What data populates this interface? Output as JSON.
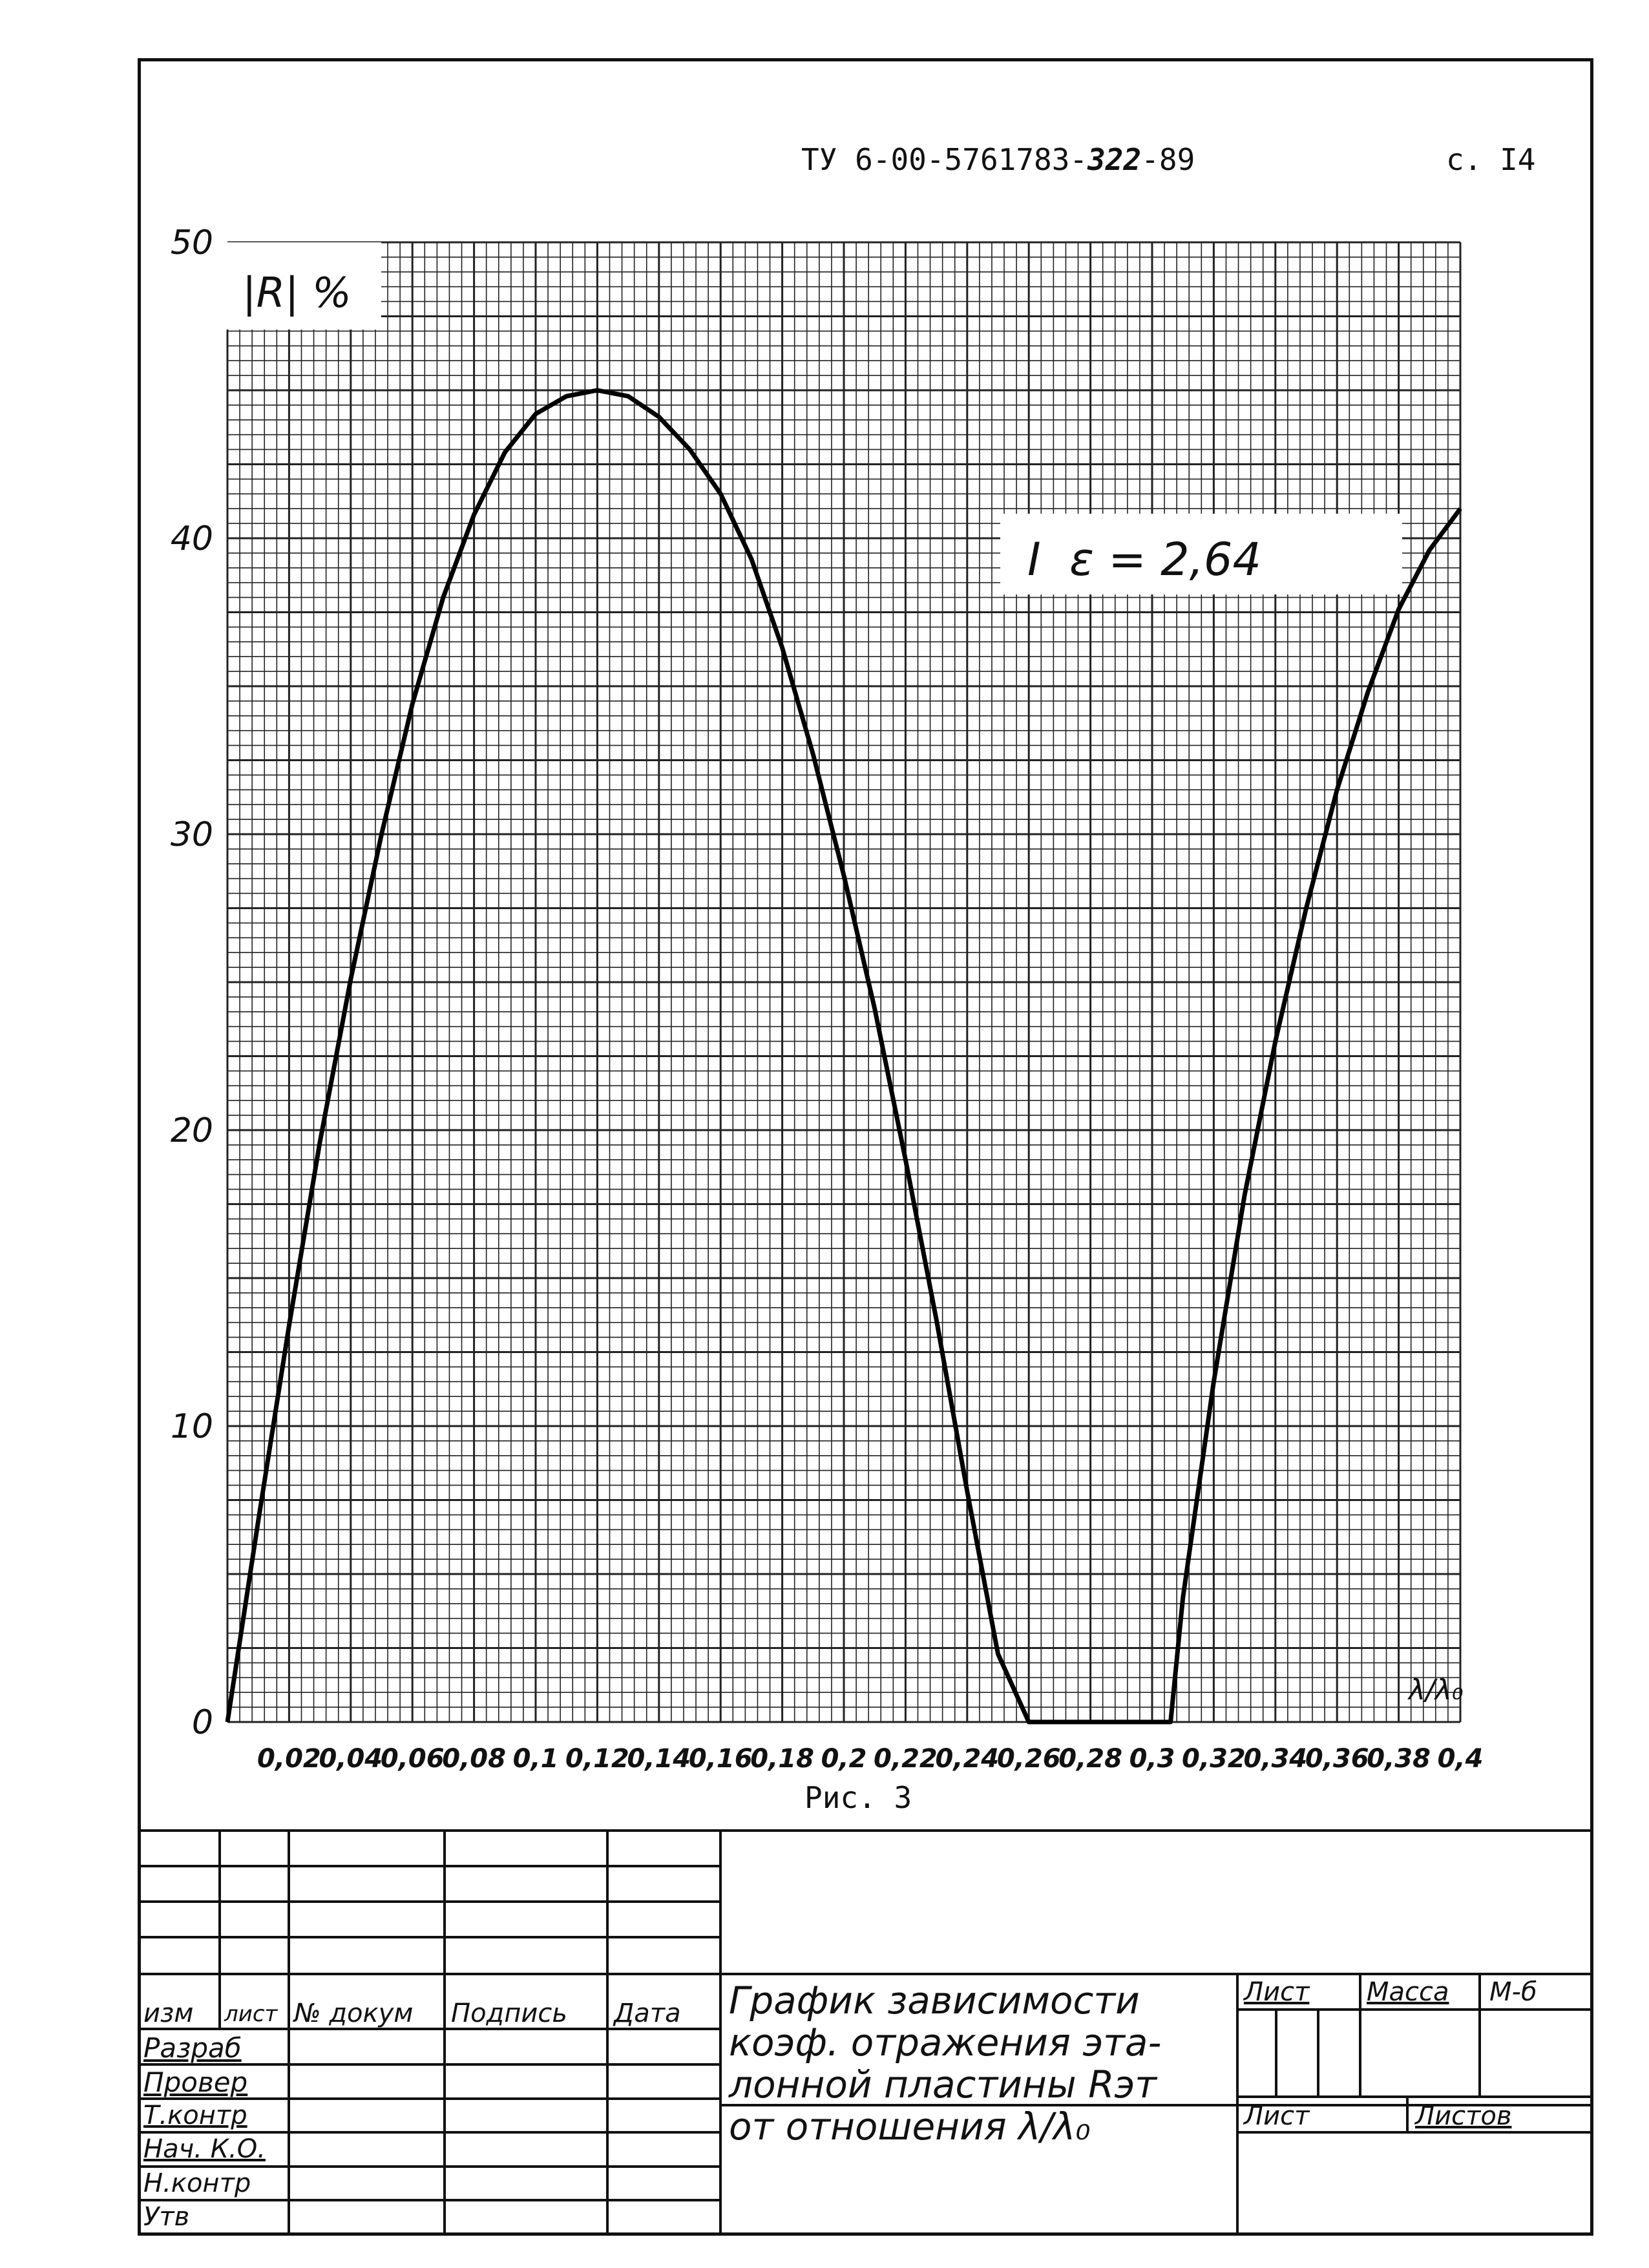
{
  "header": {
    "doc_code_prefix": "ТУ 6-00-5761783-",
    "doc_code_number": "322",
    "doc_code_suffix": "-89",
    "page": "с. I4"
  },
  "figure_caption": "Рис. 3",
  "chart_data": {
    "type": "line",
    "ylabel": "|R| %",
    "xlabel": "λ/λ₀",
    "xlim": [
      0,
      0.4
    ],
    "ylim": [
      0,
      50
    ],
    "x_ticks": [
      "0,02",
      "0,04",
      "0,06",
      "0,08",
      "0,1",
      "0,12",
      "0,14",
      "0,16",
      "0,18",
      "0,2",
      "0,22",
      "0,24",
      "0,26",
      "0,28",
      "0,3",
      "0,32",
      "0,34",
      "0,36",
      "0,38",
      "0,4"
    ],
    "y_ticks": [
      "0",
      "10",
      "20",
      "30",
      "40",
      "50"
    ],
    "grid": true,
    "annotation": "I  ε = 2,64",
    "series": [
      {
        "x": [
          0,
          0.01,
          0.02,
          0.03,
          0.04,
          0.05,
          0.06,
          0.07,
          0.08,
          0.09,
          0.1,
          0.11,
          0.12,
          0.13,
          0.14,
          0.15,
          0.16,
          0.17,
          0.18,
          0.19,
          0.2,
          0.21,
          0.22,
          0.23,
          0.24,
          0.25,
          0.26,
          0.27,
          0.28,
          0.29,
          0.3,
          0.306,
          0.31,
          0.32,
          0.33,
          0.34,
          0.35,
          0.36,
          0.37,
          0.38,
          0.39,
          0.4
        ],
        "y": [
          0,
          6.8,
          13.4,
          19.6,
          25.1,
          30.0,
          34.4,
          38.0,
          40.8,
          42.9,
          44.2,
          44.8,
          45.0,
          44.8,
          44.1,
          43.0,
          41.5,
          39.3,
          36.3,
          32.7,
          28.6,
          24.1,
          19.0,
          13.6,
          7.8,
          2.3,
          0,
          0,
          0,
          0,
          0,
          0,
          4.2,
          11.5,
          17.8,
          23.0,
          27.5,
          31.5,
          34.8,
          37.6,
          39.6,
          41.0
        ]
      }
    ]
  },
  "title_block": {
    "col_headers": [
      "изм",
      "лист",
      "№ докум",
      "Подпись",
      "Дата"
    ],
    "roles": [
      "Разраб",
      "Провер",
      "Т.контр",
      "Нач. К.О.",
      "Н.контр",
      "Утв"
    ],
    "title_lines": [
      "График зависимости",
      "коэф. отражения эта-",
      "лонной пластины Rэт",
      "от отношения λ/λ₀"
    ],
    "sheet_label": "Лист",
    "mass_label": "Масса",
    "scale_label": "М-б",
    "sheet_label_2": "Лист",
    "sheets_label": "Листов"
  }
}
